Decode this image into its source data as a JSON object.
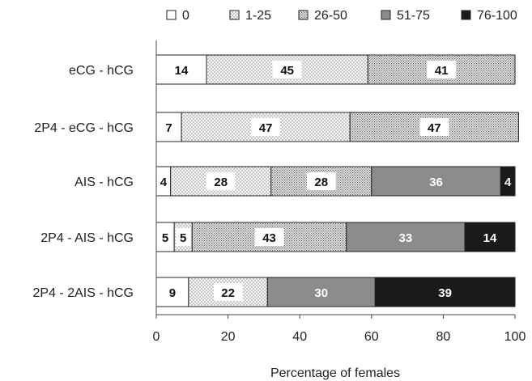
{
  "chart_data": {
    "type": "bar",
    "orientation": "horizontal",
    "stacked": true,
    "categories": [
      "eCG - hCG",
      "2P4 - eCG - hCG",
      "AIS - hCG",
      "2P4 - AIS - hCG",
      "2P4 - 2AIS - hCG"
    ],
    "series": [
      {
        "name": "0",
        "color": "#ffffff",
        "pattern": "none",
        "values": [
          14,
          7,
          4,
          5,
          9
        ]
      },
      {
        "name": "1-25",
        "color": "#f4f4f4",
        "pattern": "fine-dots",
        "values": [
          45,
          47,
          28,
          5,
          22
        ]
      },
      {
        "name": "26-50",
        "color": "#e0e0e0",
        "pattern": "dense-dots",
        "values": [
          41,
          47,
          28,
          43,
          0
        ]
      },
      {
        "name": "51-75",
        "color": "#8c8c8c",
        "pattern": "solid",
        "values": [
          0,
          0,
          36,
          33,
          30
        ]
      },
      {
        "name": "76-100",
        "color": "#1a1a1a",
        "pattern": "solid",
        "values": [
          0,
          0,
          4,
          14,
          39
        ]
      }
    ],
    "data_labels": [
      [
        "14",
        "45",
        "41",
        "",
        ""
      ],
      [
        "7",
        "47",
        "47",
        "",
        ""
      ],
      [
        "4",
        "28",
        "28",
        "36",
        "4"
      ],
      [
        "5",
        "5",
        "43",
        "33",
        "14"
      ],
      [
        "9",
        "22",
        "",
        "30",
        "39"
      ]
    ],
    "xlabel": "Percentage of females",
    "ylabel": "",
    "xlim": [
      0,
      100
    ],
    "xticks": [
      0,
      20,
      40,
      60,
      80,
      100
    ],
    "legend_position": "top",
    "grid": false
  }
}
